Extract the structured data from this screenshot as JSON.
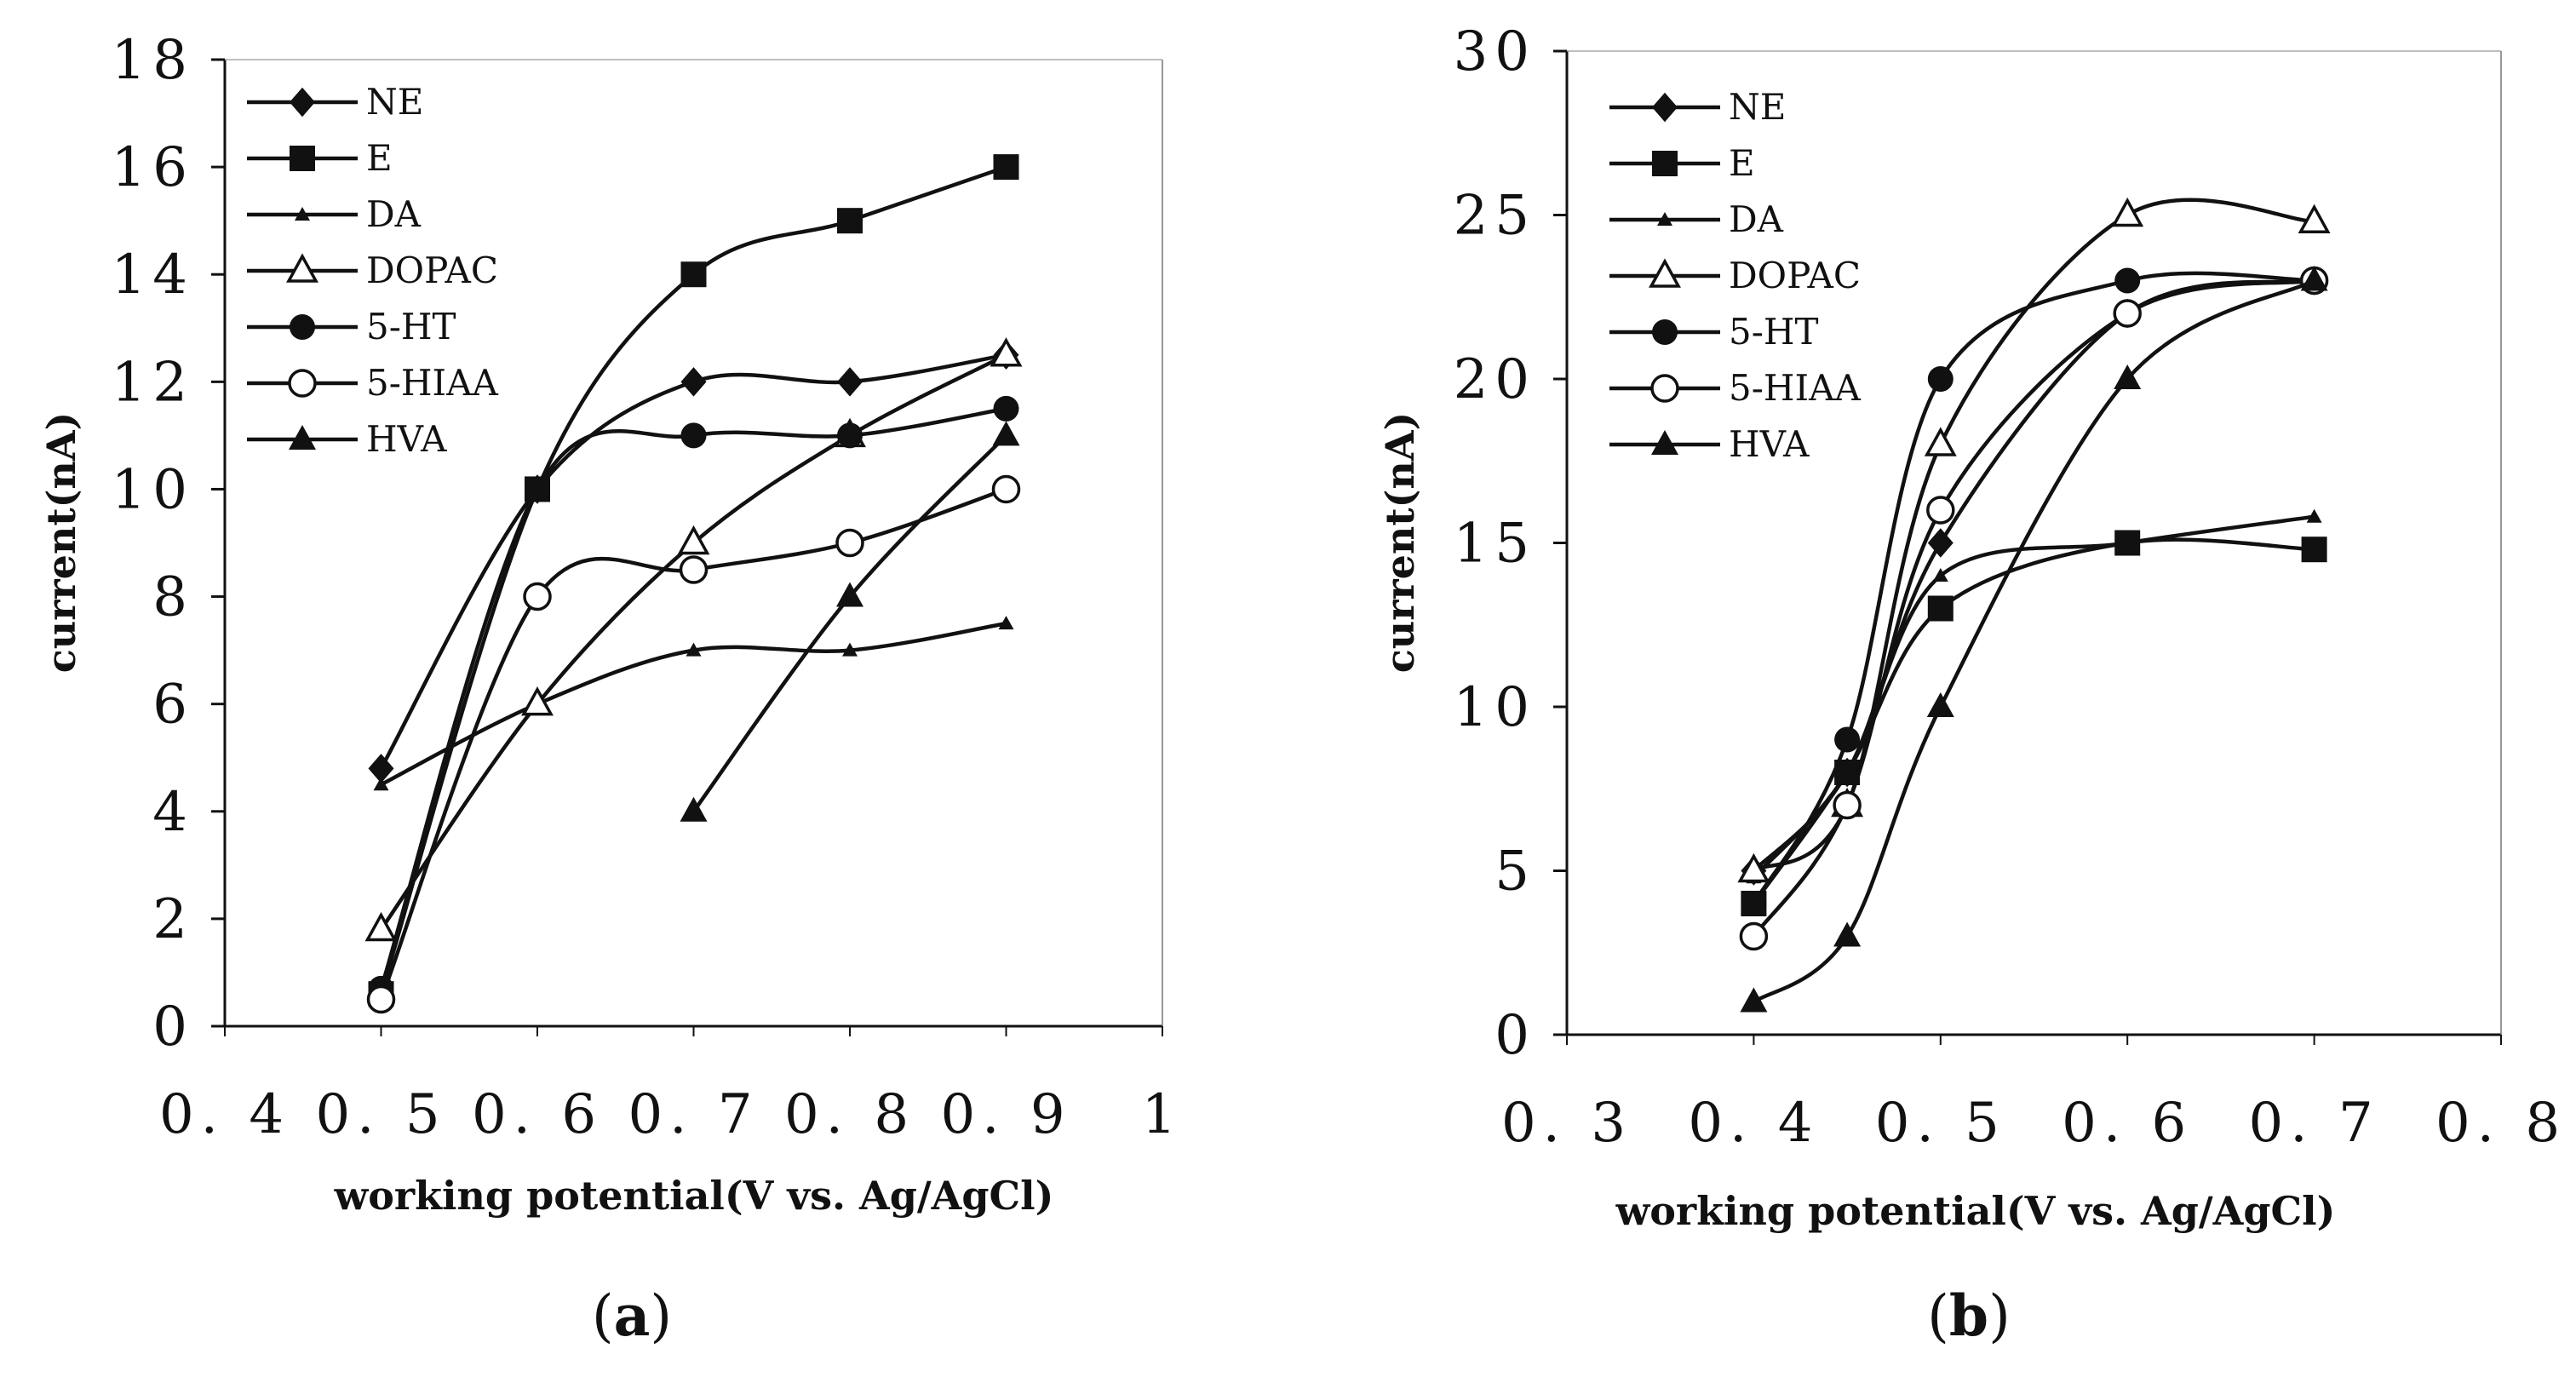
{
  "chart_data": [
    {
      "panel_label": "a",
      "type": "line",
      "xlabel": "working potential(V vs. Ag/AgCl)",
      "ylabel": "current(nA)",
      "xlim": [
        0.4,
        1.0
      ],
      "ylim": [
        0,
        18
      ],
      "xticks": [
        0.4,
        0.5,
        0.6,
        0.7,
        0.8,
        0.9,
        1.0
      ],
      "xtick_labels": [
        "0. 4",
        "0. 5",
        "0. 6",
        "0. 7",
        "0. 8",
        "0. 9",
        "1"
      ],
      "yticks": [
        0,
        2,
        4,
        6,
        8,
        10,
        12,
        14,
        16,
        18
      ],
      "ytick_labels": [
        "0",
        "2",
        "4",
        "6",
        "8",
        "10",
        "12",
        "14",
        "16",
        "18"
      ],
      "grid": false,
      "legend_position": "top-left",
      "series": [
        {
          "name": "NE",
          "marker": "diamond",
          "x": [
            0.5,
            0.6,
            0.7,
            0.8,
            0.9
          ],
          "y": [
            4.8,
            10,
            12,
            12,
            12.5
          ]
        },
        {
          "name": "E",
          "marker": "square",
          "x": [
            0.5,
            0.6,
            0.7,
            0.8,
            0.9
          ],
          "y": [
            0.6,
            10,
            14,
            15,
            16
          ]
        },
        {
          "name": "DA",
          "marker": "small-triangle",
          "x": [
            0.5,
            0.6,
            0.7,
            0.8,
            0.9
          ],
          "y": [
            4.5,
            6,
            7,
            7,
            7.5
          ]
        },
        {
          "name": "DOPAC",
          "marker": "open-triangle",
          "x": [
            0.5,
            0.6,
            0.7,
            0.8,
            0.9
          ],
          "y": [
            1.8,
            6,
            9,
            11,
            12.5
          ]
        },
        {
          "name": "5-HT",
          "marker": "filled-circle",
          "x": [
            0.5,
            0.6,
            0.7,
            0.8,
            0.9
          ],
          "y": [
            0.7,
            10,
            11,
            11,
            11.5
          ]
        },
        {
          "name": "5-HIAA",
          "marker": "open-circle",
          "x": [
            0.5,
            0.6,
            0.7,
            0.8,
            0.9
          ],
          "y": [
            0.5,
            8,
            8.5,
            9,
            10
          ]
        },
        {
          "name": "HVA",
          "marker": "filled-triangle",
          "x": [
            0.7,
            0.8,
            0.9
          ],
          "y": [
            4,
            8,
            11
          ]
        }
      ]
    },
    {
      "panel_label": "b",
      "type": "line",
      "xlabel": "working potential(V vs. Ag/AgCl)",
      "ylabel": "current(nA)",
      "xlim": [
        0.3,
        0.8
      ],
      "ylim": [
        0,
        30
      ],
      "xticks": [
        0.3,
        0.4,
        0.5,
        0.6,
        0.7,
        0.8
      ],
      "xtick_labels": [
        "0. 3",
        "0. 4",
        "0. 5",
        "0. 6",
        "0. 7",
        "0. 8"
      ],
      "yticks": [
        0,
        5,
        10,
        15,
        20,
        25,
        30
      ],
      "ytick_labels": [
        "0",
        "5",
        "10",
        "15",
        "20",
        "25",
        "30"
      ],
      "grid": false,
      "legend_position": "top-left",
      "series": [
        {
          "name": "NE",
          "marker": "diamond",
          "x": [
            0.4,
            0.45,
            0.5,
            0.6,
            0.7
          ],
          "y": [
            5,
            8,
            15,
            22,
            23
          ]
        },
        {
          "name": "E",
          "marker": "square",
          "x": [
            0.4,
            0.45,
            0.5,
            0.6,
            0.7
          ],
          "y": [
            4,
            8,
            13,
            15,
            14.8
          ]
        },
        {
          "name": "DA",
          "marker": "small-triangle",
          "x": [
            0.4,
            0.45,
            0.5,
            0.6,
            0.7
          ],
          "y": [
            4.8,
            8,
            14,
            15,
            15.8
          ]
        },
        {
          "name": "DOPAC",
          "marker": "open-triangle",
          "x": [
            0.4,
            0.45,
            0.5,
            0.6,
            0.7
          ],
          "y": [
            5,
            7,
            18,
            25,
            24.8
          ]
        },
        {
          "name": "5-HT",
          "marker": "filled-circle",
          "x": [
            0.4,
            0.45,
            0.5,
            0.6,
            0.7
          ],
          "y": [
            4,
            9,
            20,
            23,
            23
          ]
        },
        {
          "name": "5-HIAA",
          "marker": "open-circle",
          "x": [
            0.4,
            0.45,
            0.5,
            0.6,
            0.7
          ],
          "y": [
            3,
            7,
            16,
            22,
            23
          ]
        },
        {
          "name": "HVA",
          "marker": "filled-triangle",
          "x": [
            0.4,
            0.45,
            0.5,
            0.6,
            0.7
          ],
          "y": [
            1,
            3,
            10,
            20,
            23
          ]
        }
      ]
    }
  ]
}
